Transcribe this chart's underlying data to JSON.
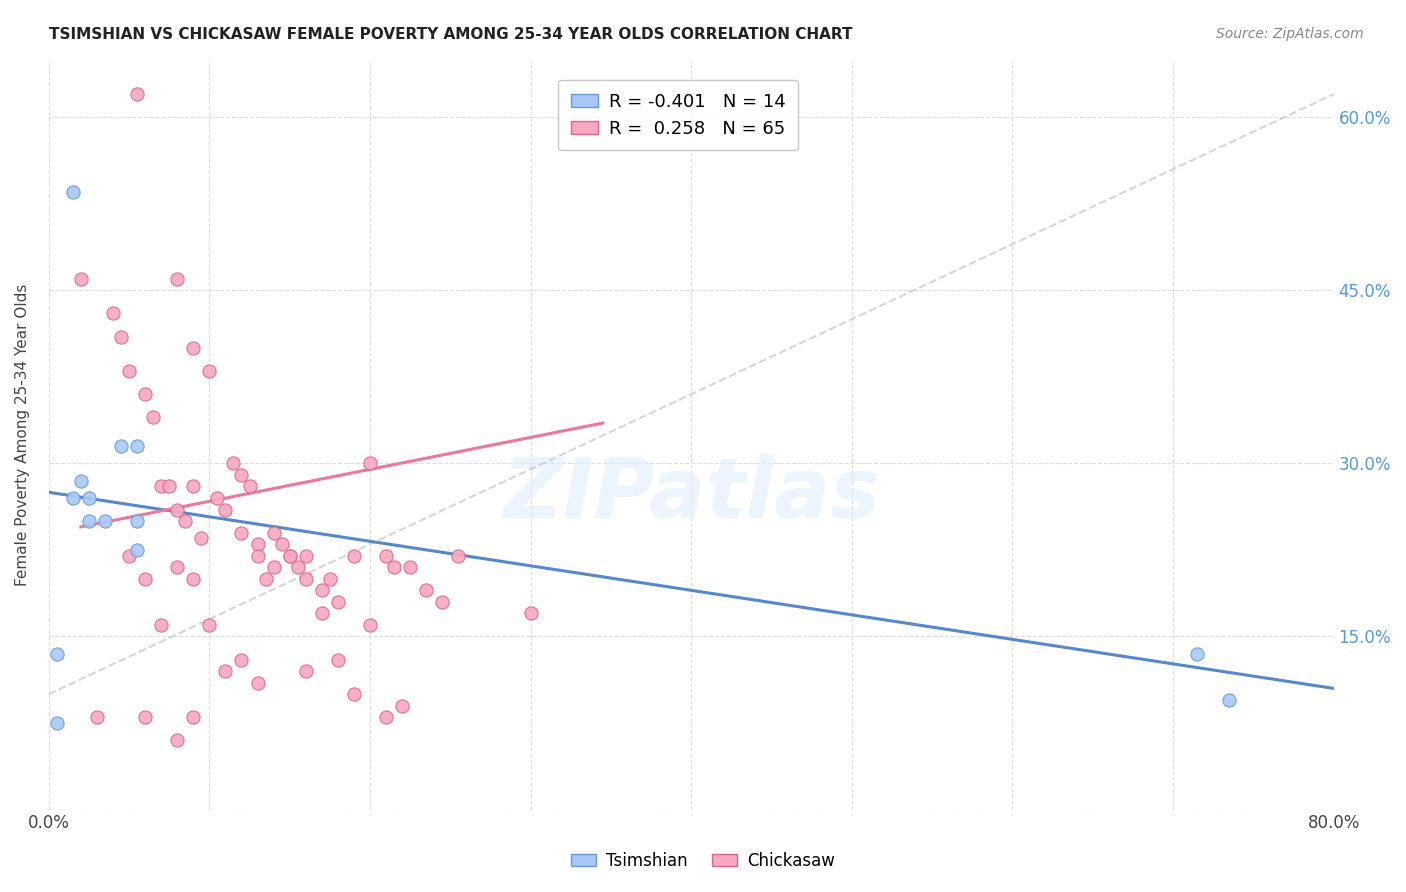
{
  "title": "TSIMSHIAN VS CHICKASAW FEMALE POVERTY AMONG 25-34 YEAR OLDS CORRELATION CHART",
  "source": "Source: ZipAtlas.com",
  "ylabel": "Female Poverty Among 25-34 Year Olds",
  "xlim": [
    0.0,
    0.8
  ],
  "ylim": [
    0.0,
    0.65
  ],
  "x_ticks": [
    0.0,
    0.1,
    0.2,
    0.3,
    0.4,
    0.5,
    0.6,
    0.7,
    0.8
  ],
  "y_ticks": [
    0.0,
    0.15,
    0.3,
    0.45,
    0.6
  ],
  "y_tick_labels_right": [
    "",
    "15.0%",
    "30.0%",
    "45.0%",
    "60.0%"
  ],
  "tsimshian_color": "#a8c8f8",
  "chickasaw_color": "#f8a8c0",
  "tsimshian_edge_color": "#6699dd",
  "chickasaw_edge_color": "#dd6688",
  "tsimshian_line_color": "#5588cc",
  "chickasaw_line_color": "#ee7799",
  "gray_line_color": "#cccccc",
  "legend_tsimshian_R": "-0.401",
  "legend_tsimshian_N": "14",
  "legend_chickasaw_R": "0.258",
  "legend_chickasaw_N": "65",
  "watermark": "ZIPatlas",
  "tsimshian_x": [
    0.015,
    0.045,
    0.055,
    0.005,
    0.005,
    0.015,
    0.02,
    0.025,
    0.025,
    0.035,
    0.055,
    0.055,
    0.715,
    0.735
  ],
  "tsimshian_y": [
    0.535,
    0.315,
    0.315,
    0.135,
    0.075,
    0.27,
    0.285,
    0.27,
    0.25,
    0.25,
    0.25,
    0.225,
    0.135,
    0.095
  ],
  "chickasaw_x": [
    0.055,
    0.02,
    0.04,
    0.045,
    0.05,
    0.06,
    0.065,
    0.07,
    0.075,
    0.08,
    0.085,
    0.09,
    0.095,
    0.105,
    0.115,
    0.12,
    0.125,
    0.13,
    0.135,
    0.14,
    0.145,
    0.15,
    0.155,
    0.16,
    0.17,
    0.175,
    0.18,
    0.19,
    0.2,
    0.21,
    0.215,
    0.225,
    0.235,
    0.245,
    0.255,
    0.3,
    0.08,
    0.09,
    0.1,
    0.11,
    0.12,
    0.13,
    0.14,
    0.15,
    0.16,
    0.17,
    0.18,
    0.05,
    0.06,
    0.07,
    0.08,
    0.09,
    0.1,
    0.11,
    0.12,
    0.2,
    0.21,
    0.22,
    0.03,
    0.06,
    0.08,
    0.09,
    0.13,
    0.16,
    0.19
  ],
  "chickasaw_y": [
    0.62,
    0.46,
    0.43,
    0.41,
    0.38,
    0.36,
    0.34,
    0.28,
    0.28,
    0.26,
    0.25,
    0.28,
    0.235,
    0.27,
    0.3,
    0.24,
    0.28,
    0.23,
    0.2,
    0.24,
    0.23,
    0.22,
    0.21,
    0.22,
    0.19,
    0.2,
    0.18,
    0.22,
    0.3,
    0.22,
    0.21,
    0.21,
    0.19,
    0.18,
    0.22,
    0.17,
    0.46,
    0.4,
    0.38,
    0.26,
    0.29,
    0.22,
    0.21,
    0.22,
    0.2,
    0.17,
    0.13,
    0.22,
    0.2,
    0.16,
    0.21,
    0.2,
    0.16,
    0.12,
    0.13,
    0.16,
    0.08,
    0.09,
    0.08,
    0.08,
    0.06,
    0.08,
    0.11,
    0.12,
    0.1
  ],
  "tsimshian_line_x": [
    0.0,
    0.8
  ],
  "tsimshian_line_y": [
    0.275,
    0.105
  ],
  "chickasaw_line_x": [
    0.02,
    0.345
  ],
  "chickasaw_line_y": [
    0.245,
    0.335
  ],
  "gray_line_x": [
    0.0,
    0.8
  ],
  "gray_line_y": [
    0.1,
    0.62
  ]
}
